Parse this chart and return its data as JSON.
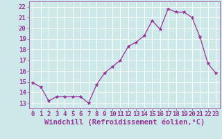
{
  "hours": [
    0,
    1,
    2,
    3,
    4,
    5,
    6,
    7,
    8,
    9,
    10,
    11,
    12,
    13,
    14,
    15,
    16,
    17,
    18,
    19,
    20,
    21,
    22,
    23
  ],
  "values": [
    14.9,
    14.5,
    13.2,
    13.6,
    13.6,
    13.6,
    13.6,
    13.0,
    14.7,
    15.8,
    16.4,
    17.0,
    18.3,
    18.7,
    19.3,
    20.7,
    19.9,
    21.8,
    21.5,
    21.5,
    21.0,
    19.2,
    16.7,
    15.8
  ],
  "line_color": "#993399",
  "marker": "*",
  "marker_size": 3.5,
  "bg_color": "#cce8e8",
  "grid_color": "#ffffff",
  "xlabel": "Windchill (Refroidissement éolien,°C)",
  "xlabel_fontsize": 7.5,
  "tick_fontsize": 6.5,
  "ylim": [
    12.5,
    22.5
  ],
  "yticks": [
    13,
    14,
    15,
    16,
    17,
    18,
    19,
    20,
    21,
    22
  ],
  "xticks": [
    0,
    1,
    2,
    3,
    4,
    5,
    6,
    7,
    8,
    9,
    10,
    11,
    12,
    13,
    14,
    15,
    16,
    17,
    18,
    19,
    20,
    21,
    22,
    23
  ],
  "xlim": [
    -0.5,
    23.5
  ]
}
